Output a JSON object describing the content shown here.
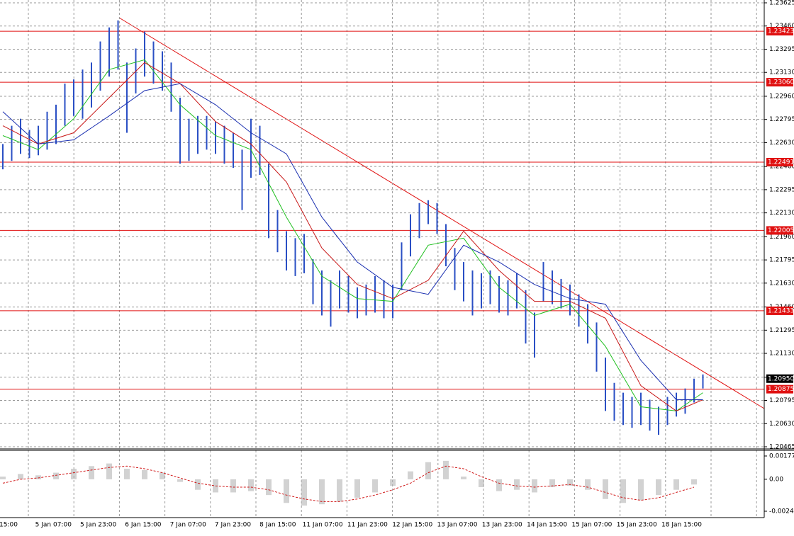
{
  "chart_data": [
    {
      "type": "price",
      "categories": [
        "15:00",
        "5 Jan 07:00",
        "5 Jan 23:00",
        "6 Jan 15:00",
        "7 Jan 07:00",
        "7 Jan 23:00",
        "8 Jan 15:00",
        "11 Jan 07:00",
        "11 Jan 23:00",
        "12 Jan 15:00",
        "13 Jan 07:00",
        "13 Jan 23:00",
        "14 Jan 15:00",
        "15 Jan 07:00",
        "15 Jan 23:00",
        "18 Jan 15:00"
      ],
      "bars": {
        "color": "#2a4fc4",
        "high": [
          1.2262,
          1.2275,
          1.228,
          1.2272,
          1.2275,
          1.2285,
          1.229,
          1.2305,
          1.2308,
          1.2315,
          1.232,
          1.2335,
          1.2345,
          1.235,
          1.232,
          1.233,
          1.2342,
          1.2335,
          1.2328,
          1.232,
          1.2295,
          1.228,
          1.2282,
          1.2282,
          1.2278,
          1.2275,
          1.227,
          1.2258,
          1.228,
          1.2275,
          1.2248,
          1.2215,
          1.22,
          1.2195,
          1.2198,
          1.218,
          1.2172,
          1.2165,
          1.2172,
          1.2168,
          1.216,
          1.2162,
          1.2168,
          1.2165,
          1.2162,
          1.2192,
          1.2212,
          1.222,
          1.2222,
          1.222,
          1.2205,
          1.2188,
          1.2178,
          1.2172,
          1.217,
          1.2172,
          1.2168,
          1.2165,
          1.217,
          1.2158,
          1.2142,
          1.2178,
          1.2172,
          1.2166,
          1.2162,
          1.2155,
          1.2148,
          1.2135,
          1.211,
          1.2092,
          1.2085,
          1.2082,
          1.2085,
          1.208,
          1.2075,
          1.2082,
          1.2085,
          1.2088,
          1.2095,
          1.2098
        ],
        "low": [
          1.2244,
          1.225,
          1.2255,
          1.2252,
          1.2254,
          1.2258,
          1.2262,
          1.2275,
          1.2282,
          1.228,
          1.2288,
          1.23,
          1.231,
          1.2315,
          1.227,
          1.2298,
          1.231,
          1.2305,
          1.23,
          1.2285,
          1.2248,
          1.225,
          1.2255,
          1.2258,
          1.2255,
          1.2248,
          1.2245,
          1.2215,
          1.2238,
          1.224,
          1.2195,
          1.2185,
          1.2172,
          1.2168,
          1.217,
          1.2148,
          1.214,
          1.2132,
          1.2145,
          1.2142,
          1.2138,
          1.214,
          1.2142,
          1.2138,
          1.2138,
          1.2158,
          1.2182,
          1.2195,
          1.2205,
          1.2198,
          1.2175,
          1.2158,
          1.215,
          1.214,
          1.2145,
          1.2148,
          1.2142,
          1.214,
          1.2145,
          1.212,
          1.211,
          1.215,
          1.2148,
          1.2145,
          1.214,
          1.2132,
          1.212,
          1.21,
          1.2072,
          1.2065,
          1.2062,
          1.206,
          1.2062,
          1.2058,
          1.2055,
          1.2062,
          1.2068,
          1.207,
          1.2078,
          1.2088
        ]
      },
      "moving_averages": {
        "x": [
          0,
          4,
          8,
          12,
          16,
          20,
          24,
          28,
          32,
          36,
          40,
          44,
          48,
          52,
          56,
          60,
          64,
          68,
          72,
          76,
          79
        ],
        "series": [
          {
            "color": "#22c022",
            "values": [
              1.2268,
              1.2258,
              1.228,
              1.2315,
              1.2322,
              1.229,
              1.2268,
              1.2258,
              1.221,
              1.2168,
              1.2152,
              1.215,
              1.219,
              1.2195,
              1.216,
              1.214,
              1.2148,
              1.2118,
              1.2075,
              1.2072,
              1.2085
            ]
          },
          {
            "color": "#c81818",
            "values": [
              1.2275,
              1.2262,
              1.227,
              1.2295,
              1.232,
              1.2305,
              1.2278,
              1.2262,
              1.2235,
              1.2188,
              1.2162,
              1.2152,
              1.2165,
              1.22,
              1.2172,
              1.215,
              1.215,
              1.2138,
              1.209,
              1.2072,
              1.208
            ]
          },
          {
            "color": "#1a2fb0",
            "values": [
              1.2285,
              1.2262,
              1.2265,
              1.2282,
              1.23,
              1.2305,
              1.229,
              1.227,
              1.2255,
              1.221,
              1.2178,
              1.216,
              1.2155,
              1.219,
              1.2178,
              1.2162,
              1.2152,
              1.2148,
              1.2108,
              1.208,
              1.208
            ]
          }
        ]
      },
      "ylim": [
        1.20465,
        1.23625
      ],
      "yticks": [
        1.23625,
        {
          "value": 1.2346,
          "label": "1.23460"
        },
        1.23295,
        {
          "value": 1.2313,
          "label": "1.23130"
        },
        {
          "value": 1.2296,
          "label": "1.22960"
        },
        1.22795,
        {
          "value": 1.2263,
          "label": "1.22630"
        },
        {
          "value": 1.2246,
          "label": "1.22460"
        },
        1.22295,
        {
          "value": 1.2213,
          "label": "1.22130"
        },
        {
          "value": 1.2196,
          "label": "1.21960"
        },
        1.21795,
        {
          "value": 1.2163,
          "label": "1.21630"
        },
        {
          "value": 1.2146,
          "label": "1.21460"
        },
        1.21295,
        {
          "value": 1.2113,
          "label": "1.21130"
        },
        {
          "value": 1.2096,
          "label": "1.20960"
        },
        1.20795,
        {
          "value": 1.2063,
          "label": "1.20630"
        },
        1.20465
      ],
      "levels": [
        1.23423,
        1.2306,
        1.22491,
        1.22005,
        1.21433,
        1.20875
      ],
      "level_labels": [
        "1.23423",
        "1.23060",
        "1.22491",
        "1.22005",
        "1.21433",
        "1.20875"
      ],
      "level_color": "#e01010",
      "current": {
        "value": 1.2095,
        "label": "1.20950"
      },
      "grid": true
    },
    {
      "type": "oscillator",
      "x": [
        0,
        2,
        4,
        6,
        8,
        10,
        12,
        14,
        16,
        18,
        20,
        22,
        24,
        26,
        28,
        30,
        32,
        34,
        36,
        38,
        40,
        42,
        44,
        46,
        48,
        50,
        52,
        54,
        56,
        58,
        60,
        62,
        64,
        66,
        68,
        70,
        72,
        74,
        76,
        78
      ],
      "histogram": [
        0.0002,
        0.0004,
        0.0003,
        0.0005,
        0.0008,
        0.001,
        0.0012,
        0.0008,
        0.0007,
        0.0005,
        -0.0002,
        -0.0008,
        -0.001,
        -0.001,
        -0.0009,
        -0.0012,
        -0.0018,
        -0.002,
        -0.0019,
        -0.0017,
        -0.0014,
        -0.001,
        -0.0005,
        0.0006,
        0.0013,
        0.0014,
        0.0002,
        -0.0006,
        -0.0009,
        -0.0008,
        -0.001,
        -0.0006,
        -0.0005,
        -0.0008,
        -0.0015,
        -0.0018,
        -0.0016,
        -0.0012,
        -0.0008,
        -0.0004
      ],
      "signal": [
        -0.0003,
        0.0,
        0.0001,
        0.0003,
        0.0005,
        0.0007,
        0.0009,
        0.001,
        0.0008,
        0.0005,
        0.0001,
        -0.0003,
        -0.0005,
        -0.0006,
        -0.0006,
        -0.0008,
        -0.0012,
        -0.0015,
        -0.0017,
        -0.0017,
        -0.0015,
        -0.0012,
        -0.0008,
        -0.0003,
        0.0005,
        0.001,
        0.0008,
        0.0002,
        -0.0003,
        -0.0005,
        -0.0006,
        -0.0005,
        -0.0004,
        -0.0006,
        -0.001,
        -0.0014,
        -0.0016,
        -0.0014,
        -0.001,
        -0.0006
      ],
      "histogram_color": "#b4b4b4",
      "signal_color": "#d01818",
      "ylim": [
        -0.00243,
        0.00177
      ],
      "yticks": [
        0.00177,
        {
          "value": 0,
          "label": "0.00"
        },
        -0.00243
      ]
    }
  ]
}
